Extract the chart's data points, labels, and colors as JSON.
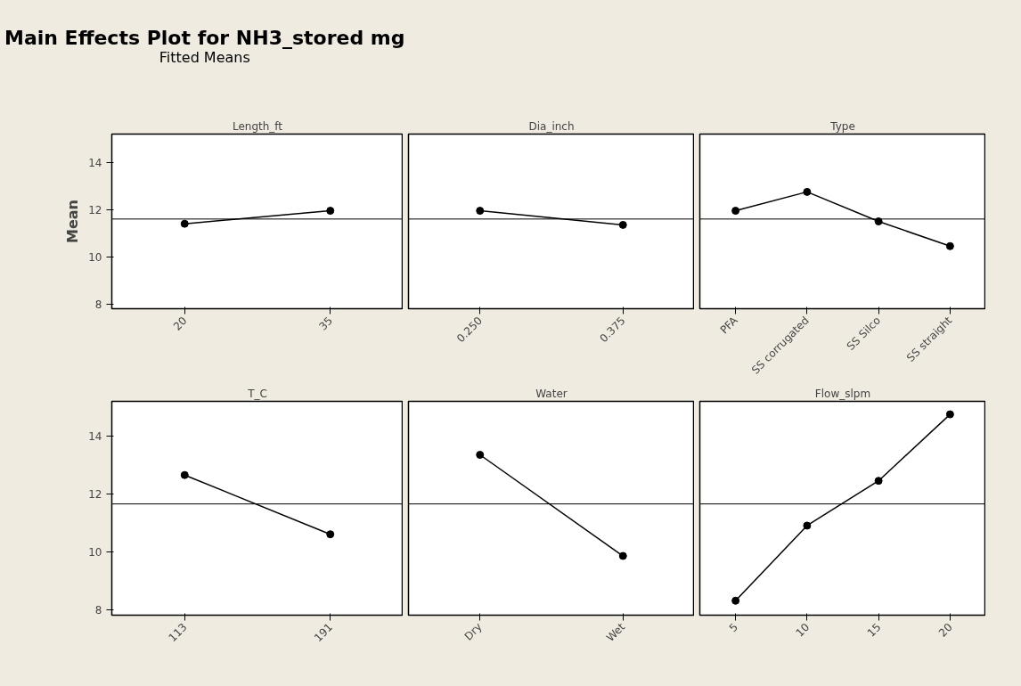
{
  "chart_data": [
    {
      "type": "other",
      "title": "Main Effects Plot for NH3_stored mg",
      "subtitle": "Fitted Means"
    },
    {
      "type": "line",
      "title": "Length_ft",
      "ylabel": "Mean",
      "categories": [
        "20",
        "35"
      ],
      "values": [
        11.4,
        11.95
      ],
      "color": "#000000",
      "marker": "circle",
      "ylim": [
        7.8,
        15.2
      ],
      "yticks": [
        8,
        10,
        12,
        14
      ],
      "ref_lines": [
        {
          "axis": "y",
          "value": 11.6,
          "color": "#000000"
        }
      ],
      "grid": false
    },
    {
      "type": "line",
      "title": "Dia_inch",
      "categories": [
        "0.250",
        "0.375"
      ],
      "values": [
        11.95,
        11.35
      ],
      "color": "#000000",
      "marker": "circle",
      "ylim": [
        7.8,
        15.2
      ],
      "yticks": [
        8,
        10,
        12,
        14
      ],
      "tick_labels": "x",
      "ref_lines": [
        {
          "axis": "y",
          "value": 11.6,
          "color": "#000000"
        }
      ],
      "grid": false
    },
    {
      "type": "line",
      "title": "Type",
      "categories": [
        "PFA",
        "SS corrugated",
        "SS Silco",
        "SS straight"
      ],
      "values": [
        11.95,
        12.75,
        11.5,
        10.45
      ],
      "color": "#000000",
      "marker": "circle",
      "ylim": [
        7.8,
        15.2
      ],
      "yticks": [
        8,
        10,
        12,
        14
      ],
      "tick_labels": "x",
      "ref_lines": [
        {
          "axis": "y",
          "value": 11.6,
          "color": "#000000"
        }
      ],
      "grid": false
    },
    {
      "type": "line",
      "title": "T_C",
      "categories": [
        "113",
        "191"
      ],
      "values": [
        12.65,
        10.6
      ],
      "color": "#000000",
      "marker": "circle",
      "ylim": [
        7.8,
        15.2
      ],
      "yticks": [
        8,
        10,
        12,
        14
      ],
      "ref_lines": [
        {
          "axis": "y",
          "value": 11.65,
          "color": "#000000"
        }
      ],
      "grid": false
    },
    {
      "type": "line",
      "title": "Water",
      "categories": [
        "Dry",
        "Wet"
      ],
      "values": [
        13.35,
        9.85
      ],
      "color": "#000000",
      "marker": "circle",
      "ylim": [
        7.8,
        15.2
      ],
      "yticks": [
        8,
        10,
        12,
        14
      ],
      "tick_labels": "x",
      "ref_lines": [
        {
          "axis": "y",
          "value": 11.65,
          "color": "#000000"
        }
      ],
      "grid": false
    },
    {
      "type": "line",
      "title": "Flow_slpm",
      "categories": [
        "5",
        "10",
        "15",
        "20"
      ],
      "values": [
        8.3,
        10.9,
        12.45,
        14.75
      ],
      "color": "#000000",
      "marker": "circle",
      "ylim": [
        7.8,
        15.2
      ],
      "yticks": [
        8,
        10,
        12,
        14
      ],
      "tick_labels": "x",
      "ref_lines": [
        {
          "axis": "y",
          "value": 11.65,
          "color": "#000000"
        }
      ],
      "grid": false
    }
  ]
}
